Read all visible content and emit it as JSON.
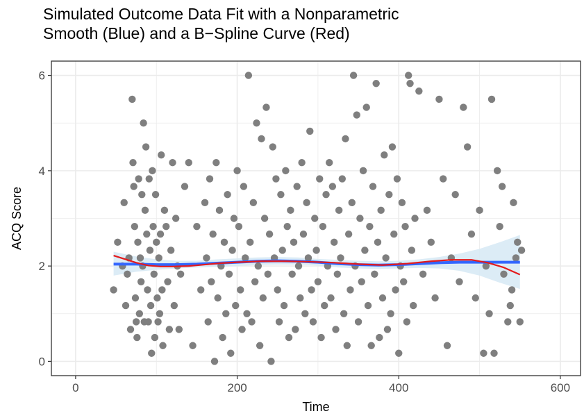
{
  "chart_data": {
    "type": "scatter",
    "title": "Simulated Outcome Data Fit with a Nonparametric\nSmooth (Blue) and a B−Spline Curve (Red)",
    "xlabel": "Time",
    "ylabel": "ACQ Score",
    "xlim": [
      -30,
      625
    ],
    "ylim": [
      -0.3,
      6.3
    ],
    "x_ticks": [
      0,
      200,
      400,
      600
    ],
    "y_ticks": [
      0,
      2,
      4,
      6
    ],
    "grid": true,
    "colors": {
      "points": "#7f7f7f",
      "smooth": "#3366ff",
      "ribbon": "#d6e9f5",
      "spline": "#e31a1c",
      "grid": "#ebebeb",
      "border": "#333333"
    },
    "smooth_curve": {
      "x": [
        47,
        75,
        100,
        125,
        150,
        175,
        200,
        225,
        250,
        275,
        300,
        325,
        350,
        375,
        400,
        425,
        450,
        475,
        500,
        525,
        550
      ],
      "y": [
        2.04,
        2.04,
        2.03,
        2.03,
        2.04,
        2.06,
        2.08,
        2.1,
        2.11,
        2.1,
        2.08,
        2.05,
        2.03,
        2.02,
        2.03,
        2.05,
        2.07,
        2.08,
        2.08,
        2.08,
        2.08
      ],
      "lower": [
        1.8,
        1.88,
        1.92,
        1.95,
        1.97,
        1.98,
        2.0,
        2.02,
        2.03,
        2.03,
        2.01,
        1.97,
        1.95,
        1.94,
        1.95,
        1.96,
        1.95,
        1.9,
        1.8,
        1.65,
        1.52
      ],
      "upper": [
        2.3,
        2.2,
        2.14,
        2.11,
        2.11,
        2.14,
        2.16,
        2.18,
        2.19,
        2.18,
        2.15,
        2.13,
        2.11,
        2.1,
        2.11,
        2.14,
        2.19,
        2.26,
        2.36,
        2.5,
        2.65
      ]
    },
    "spline_curve": {
      "x": [
        47,
        60,
        75,
        90,
        105,
        120,
        140,
        160,
        180,
        200,
        230,
        260,
        290,
        320,
        350,
        380,
        410,
        440,
        465,
        490,
        510,
        530,
        550
      ],
      "y": [
        2.22,
        2.15,
        2.07,
        2.01,
        1.99,
        1.99,
        2.0,
        2.03,
        2.06,
        2.08,
        2.1,
        2.1,
        2.09,
        2.07,
        2.04,
        2.02,
        2.05,
        2.1,
        2.13,
        2.13,
        2.07,
        1.97,
        1.82
      ]
    },
    "points": [
      [
        47,
        1.5
      ],
      [
        52,
        2.5
      ],
      [
        58,
        2.0
      ],
      [
        60,
        3.33
      ],
      [
        62,
        1.17
      ],
      [
        64,
        1.83
      ],
      [
        66,
        2.17
      ],
      [
        68,
        0.67
      ],
      [
        70,
        5.5
      ],
      [
        71,
        4.17
      ],
      [
        72,
        3.67
      ],
      [
        73,
        2.83
      ],
      [
        74,
        1.33
      ],
      [
        75,
        0.83
      ],
      [
        76,
        0.5
      ],
      [
        77,
        2.5
      ],
      [
        78,
        3.83
      ],
      [
        79,
        1.0
      ],
      [
        80,
        2.17
      ],
      [
        81,
        1.67
      ],
      [
        82,
        3.5
      ],
      [
        83,
        2.0
      ],
      [
        84,
        5.0
      ],
      [
        85,
        0.83
      ],
      [
        86,
        3.17
      ],
      [
        87,
        4.5
      ],
      [
        88,
        2.67
      ],
      [
        89,
        1.5
      ],
      [
        90,
        0.83
      ],
      [
        91,
        3.83
      ],
      [
        92,
        2.33
      ],
      [
        93,
        1.17
      ],
      [
        94,
        0.17
      ],
      [
        95,
        4.0
      ],
      [
        96,
        2.83
      ],
      [
        97,
        1.83
      ],
      [
        98,
        0.5
      ],
      [
        99,
        3.5
      ],
      [
        100,
        2.5
      ],
      [
        101,
        1.33
      ],
      [
        102,
        0.83
      ],
      [
        103,
        2.17
      ],
      [
        104,
        1.0
      ],
      [
        105,
        2.67
      ],
      [
        106,
        4.33
      ],
      [
        107,
        1.5
      ],
      [
        108,
        0.33
      ],
      [
        110,
        3.17
      ],
      [
        112,
        2.83
      ],
      [
        114,
        1.67
      ],
      [
        116,
        0.67
      ],
      [
        118,
        2.33
      ],
      [
        120,
        4.17
      ],
      [
        122,
        1.17
      ],
      [
        124,
        3.0
      ],
      [
        126,
        2.0
      ],
      [
        128,
        0.67
      ],
      [
        130,
        1.83
      ],
      [
        135,
        3.67
      ],
      [
        140,
        4.17
      ],
      [
        145,
        0.33
      ],
      [
        150,
        2.83
      ],
      [
        155,
        1.5
      ],
      [
        160,
        3.33
      ],
      [
        162,
        2.17
      ],
      [
        164,
        0.83
      ],
      [
        166,
        3.83
      ],
      [
        168,
        1.67
      ],
      [
        170,
        2.67
      ],
      [
        172,
        0.0
      ],
      [
        174,
        4.17
      ],
      [
        176,
        1.33
      ],
      [
        178,
        3.17
      ],
      [
        180,
        2.0
      ],
      [
        182,
        0.5
      ],
      [
        184,
        2.5
      ],
      [
        186,
        1.0
      ],
      [
        188,
        3.5
      ],
      [
        190,
        1.83
      ],
      [
        192,
        0.17
      ],
      [
        194,
        2.33
      ],
      [
        196,
        3.0
      ],
      [
        198,
        1.17
      ],
      [
        200,
        4.0
      ],
      [
        202,
        2.83
      ],
      [
        204,
        1.5
      ],
      [
        206,
        0.67
      ],
      [
        208,
        3.67
      ],
      [
        210,
        2.17
      ],
      [
        212,
        1.0
      ],
      [
        214,
        6.0
      ],
      [
        216,
        2.5
      ],
      [
        218,
        0.83
      ],
      [
        220,
        3.33
      ],
      [
        222,
        1.67
      ],
      [
        224,
        5.0
      ],
      [
        226,
        2.0
      ],
      [
        228,
        0.33
      ],
      [
        230,
        4.67
      ],
      [
        232,
        1.33
      ],
      [
        234,
        3.0
      ],
      [
        236,
        5.33
      ],
      [
        238,
        1.83
      ],
      [
        240,
        2.67
      ],
      [
        242,
        0.0
      ],
      [
        244,
        4.5
      ],
      [
        246,
        2.17
      ],
      [
        248,
        3.83
      ],
      [
        250,
        1.5
      ],
      [
        252,
        0.83
      ],
      [
        254,
        3.5
      ],
      [
        256,
        2.33
      ],
      [
        258,
        1.17
      ],
      [
        260,
        4.0
      ],
      [
        262,
        2.83
      ],
      [
        264,
        0.5
      ],
      [
        266,
        3.17
      ],
      [
        268,
        1.83
      ],
      [
        270,
        2.5
      ],
      [
        272,
        0.67
      ],
      [
        274,
        3.67
      ],
      [
        276,
        2.0
      ],
      [
        278,
        1.33
      ],
      [
        280,
        4.17
      ],
      [
        282,
        2.67
      ],
      [
        284,
        1.0
      ],
      [
        286,
        3.33
      ],
      [
        288,
        2.17
      ],
      [
        290,
        4.83
      ],
      [
        292,
        1.5
      ],
      [
        294,
        0.83
      ],
      [
        296,
        3.0
      ],
      [
        298,
        2.33
      ],
      [
        300,
        1.67
      ],
      [
        302,
        3.83
      ],
      [
        304,
        0.5
      ],
      [
        306,
        2.83
      ],
      [
        308,
        1.17
      ],
      [
        310,
        3.5
      ],
      [
        312,
        2.0
      ],
      [
        314,
        4.17
      ],
      [
        316,
        1.33
      ],
      [
        318,
        3.67
      ],
      [
        320,
        2.5
      ],
      [
        322,
        0.67
      ],
      [
        324,
        1.83
      ],
      [
        326,
        3.17
      ],
      [
        328,
        2.17
      ],
      [
        330,
        3.83
      ],
      [
        332,
        1.0
      ],
      [
        334,
        4.67
      ],
      [
        336,
        0.33
      ],
      [
        338,
        2.67
      ],
      [
        340,
        1.5
      ],
      [
        342,
        3.33
      ],
      [
        344,
        6.0
      ],
      [
        346,
        2.0
      ],
      [
        348,
        5.17
      ],
      [
        350,
        0.83
      ],
      [
        352,
        3.0
      ],
      [
        354,
        1.67
      ],
      [
        356,
        4.0
      ],
      [
        358,
        2.33
      ],
      [
        360,
        5.33
      ],
      [
        362,
        1.17
      ],
      [
        364,
        2.83
      ],
      [
        366,
        0.33
      ],
      [
        368,
        3.67
      ],
      [
        370,
        1.83
      ],
      [
        372,
        5.83
      ],
      [
        374,
        2.5
      ],
      [
        376,
        0.5
      ],
      [
        378,
        3.17
      ],
      [
        380,
        1.33
      ],
      [
        382,
        4.33
      ],
      [
        384,
        2.17
      ],
      [
        386,
        0.67
      ],
      [
        388,
        3.5
      ],
      [
        390,
        1.0
      ],
      [
        392,
        4.5
      ],
      [
        394,
        2.67
      ],
      [
        396,
        1.5
      ],
      [
        398,
        3.83
      ],
      [
        400,
        0.17
      ],
      [
        402,
        2.0
      ],
      [
        404,
        3.33
      ],
      [
        406,
        1.67
      ],
      [
        408,
        2.83
      ],
      [
        410,
        0.83
      ],
      [
        412,
        6.0
      ],
      [
        414,
        5.83
      ],
      [
        416,
        2.33
      ],
      [
        418,
        1.17
      ],
      [
        420,
        3.0
      ],
      [
        425,
        5.67
      ],
      [
        430,
        1.83
      ],
      [
        435,
        3.17
      ],
      [
        440,
        2.5
      ],
      [
        445,
        1.33
      ],
      [
        450,
        5.5
      ],
      [
        455,
        3.83
      ],
      [
        460,
        0.33
      ],
      [
        465,
        2.17
      ],
      [
        470,
        3.5
      ],
      [
        475,
        1.67
      ],
      [
        480,
        5.33
      ],
      [
        485,
        4.5
      ],
      [
        490,
        2.67
      ],
      [
        495,
        1.33
      ],
      [
        500,
        3.17
      ],
      [
        505,
        0.17
      ],
      [
        508,
        2.0
      ],
      [
        512,
        1.0
      ],
      [
        515,
        5.5
      ],
      [
        518,
        0.17
      ],
      [
        522,
        4.0
      ],
      [
        525,
        2.83
      ],
      [
        528,
        3.67
      ],
      [
        530,
        1.83
      ],
      [
        535,
        0.83
      ],
      [
        538,
        1.17
      ],
      [
        540,
        1.5
      ],
      [
        542,
        3.33
      ],
      [
        545,
        2.17
      ],
      [
        547,
        2.5
      ],
      [
        550,
        0.83
      ],
      [
        552,
        2.33
      ]
    ]
  }
}
